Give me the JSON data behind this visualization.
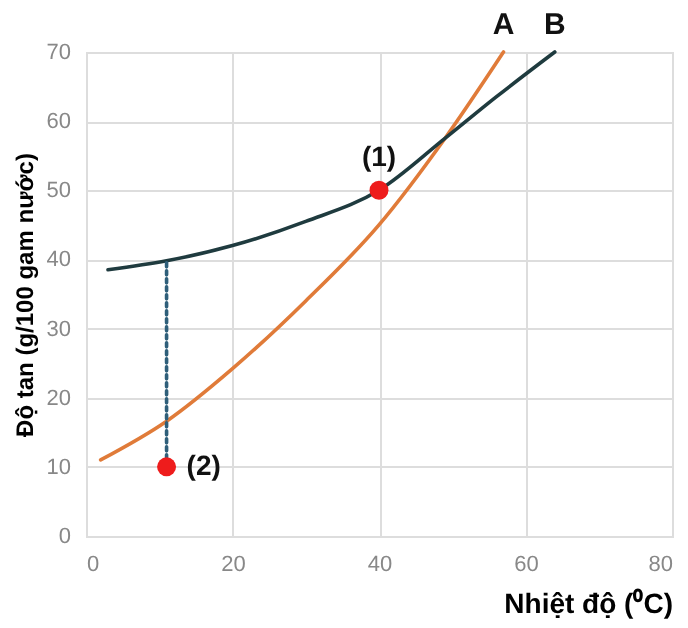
{
  "chart_data": {
    "type": "line",
    "xlabel": "Nhiệt độ (⁰C)",
    "ylabel": "Độ tan (g/100 gam nước)",
    "xlim": [
      0,
      80
    ],
    "xticks": [
      0,
      20,
      40,
      60,
      80
    ],
    "ylim": [
      0,
      70
    ],
    "yticks": [
      0,
      10,
      20,
      30,
      40,
      50,
      60,
      70
    ],
    "grid": true,
    "series": [
      {
        "name": "A",
        "color": "#e07b39",
        "marker": "none",
        "line_style": "solid",
        "x": [
          2,
          11,
          20,
          30,
          40,
          49,
          57
        ],
        "values": [
          11,
          16.6,
          24.2,
          34,
          45,
          57.5,
          70
        ]
      },
      {
        "name": "B",
        "color": "#1f3b3f",
        "marker": "none",
        "line_style": "solid",
        "x": [
          3,
          11,
          20,
          30,
          40,
          49,
          56,
          64
        ],
        "values": [
          38.5,
          39.8,
          42,
          45.5,
          50,
          57.5,
          63.5,
          70
        ]
      },
      {
        "color": "#2f5f7a",
        "marker": "none",
        "line_style": "dotted",
        "x": [
          11,
          11
        ],
        "values": [
          10,
          39.8
        ]
      },
      {
        "color": "#ee1c1c",
        "type": "scatter",
        "marker": "circle",
        "x": [
          40,
          11
        ],
        "values": [
          50,
          10
        ]
      }
    ],
    "annotations": [
      {
        "text": "(1)",
        "x": 40,
        "y": 50
      },
      {
        "text": "(2)",
        "x": 11,
        "y": 10
      }
    ]
  }
}
